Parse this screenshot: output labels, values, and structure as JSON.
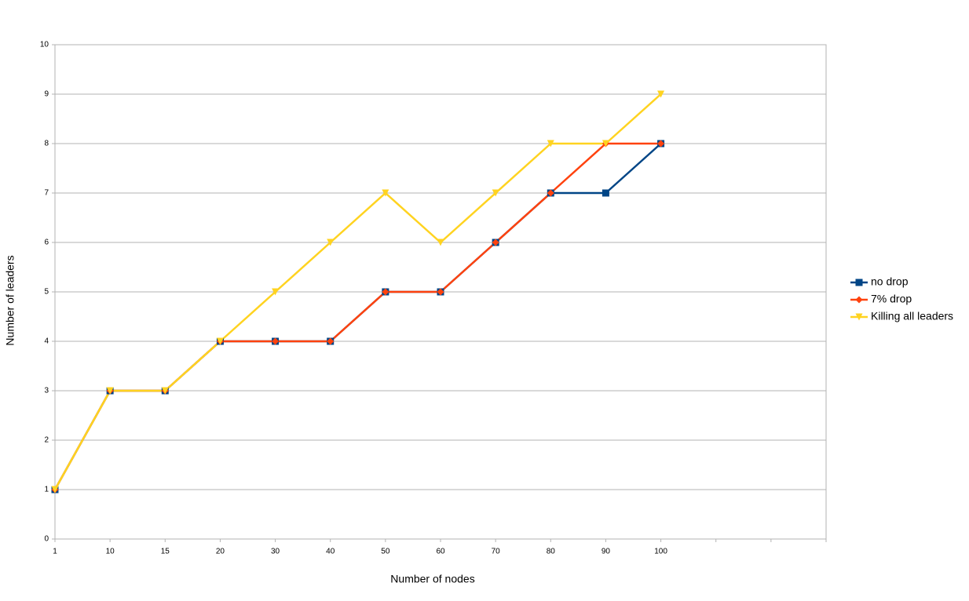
{
  "chart_data": {
    "type": "line",
    "x_label": "Number of nodes",
    "y_label": "Number of leaders",
    "categories": [
      "1",
      "10",
      "15",
      "20",
      "30",
      "40",
      "50",
      "60",
      "70",
      "80",
      "90",
      "100",
      null,
      null,
      null
    ],
    "series": [
      {
        "name": "no drop",
        "color": "#004586",
        "marker": "square",
        "values": [
          1,
          3,
          3,
          4,
          4,
          4,
          5,
          5,
          6,
          7,
          7,
          8,
          null,
          null,
          null
        ]
      },
      {
        "name": "7% drop",
        "color": "#ff420e",
        "marker": "diamond",
        "values": [
          1,
          3,
          3,
          4,
          4,
          4,
          5,
          5,
          6,
          7,
          8,
          8,
          null,
          null,
          null
        ]
      },
      {
        "name": "Killing all leaders",
        "color": "#ffd320",
        "marker": "triangle-down",
        "values": [
          1,
          3,
          3,
          4,
          5,
          6,
          7,
          6,
          7,
          8,
          8,
          9,
          null,
          null,
          null
        ]
      }
    ],
    "ylim": [
      0,
      10
    ],
    "yticks": [
      0,
      1,
      2,
      3,
      4,
      5,
      6,
      7,
      8,
      9,
      10
    ],
    "grid": true,
    "legend": "right"
  }
}
